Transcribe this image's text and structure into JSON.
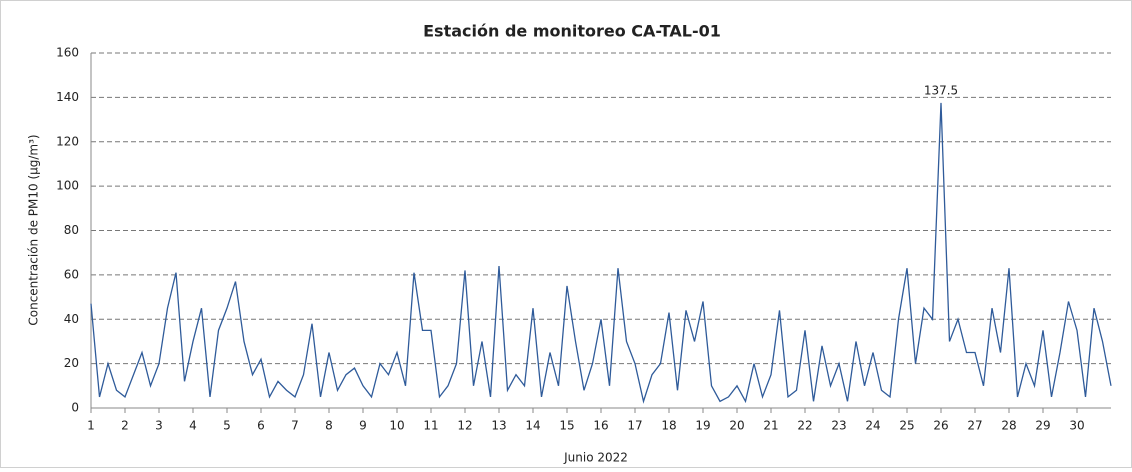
{
  "chart_data": {
    "type": "line",
    "title": "Estación de monitoreo CA-TAL-01",
    "x_label": "Junio 2022",
    "y_label": "Concentración de PM10 (µg/m³)",
    "x": [
      1,
      1.25,
      1.5,
      1.75,
      2,
      2.25,
      2.5,
      2.75,
      3,
      3.25,
      3.5,
      3.75,
      4,
      4.25,
      4.5,
      4.75,
      5,
      5.25,
      5.5,
      5.75,
      6,
      6.25,
      6.5,
      6.75,
      7,
      7.25,
      7.5,
      7.75,
      8,
      8.25,
      8.5,
      8.75,
      9,
      9.25,
      9.5,
      9.75,
      10,
      10.25,
      10.5,
      10.75,
      11,
      11.25,
      11.5,
      11.75,
      12,
      12.25,
      12.5,
      12.75,
      13,
      13.25,
      13.5,
      13.75,
      14,
      14.25,
      14.5,
      14.75,
      15,
      15.25,
      15.5,
      15.75,
      16,
      16.25,
      16.5,
      16.75,
      17,
      17.25,
      17.5,
      17.75,
      18,
      18.25,
      18.5,
      18.75,
      19,
      19.25,
      19.5,
      19.75,
      20,
      20.25,
      20.5,
      20.75,
      21,
      21.25,
      21.5,
      21.75,
      22,
      22.25,
      22.5,
      22.75,
      23,
      23.25,
      23.5,
      23.75,
      24,
      24.25,
      24.5,
      24.75,
      25,
      25.25,
      25.5,
      25.75,
      26,
      26.25,
      26.5,
      26.75,
      27,
      27.25,
      27.5,
      27.75,
      28,
      28.25,
      28.5,
      28.75,
      29,
      29.25,
      29.5,
      29.75,
      30,
      30.25,
      30.5,
      30.75,
      31
    ],
    "series": [
      {
        "name": "PM10",
        "color": "#2f5b9a",
        "values": [
          47,
          5,
          20,
          8,
          5,
          15,
          25,
          10,
          20,
          45,
          61,
          12,
          30,
          45,
          5,
          35,
          45,
          57,
          30,
          15,
          22,
          5,
          12,
          8,
          5,
          15,
          38,
          5,
          25,
          8,
          15,
          18,
          10,
          5,
          20,
          15,
          25,
          10,
          61,
          35,
          35,
          5,
          10,
          20,
          62,
          10,
          30,
          5,
          64,
          8,
          15,
          10,
          45,
          5,
          25,
          10,
          55,
          30,
          8,
          20,
          40,
          10,
          63,
          30,
          20,
          3,
          15,
          20,
          43,
          8,
          44,
          30,
          48,
          10,
          3,
          5,
          10,
          3,
          20,
          5,
          15,
          44,
          5,
          8,
          35,
          3,
          28,
          10,
          20,
          3,
          30,
          10,
          25,
          8,
          5,
          40,
          63,
          20,
          45,
          40,
          137.5,
          30,
          40,
          25,
          25,
          10,
          45,
          25,
          63,
          5,
          20,
          10,
          35,
          5,
          25,
          48,
          35,
          5,
          45,
          30,
          10
        ]
      }
    ],
    "annotations": [
      {
        "text": "137.5",
        "x": 26,
        "y": 137.5
      }
    ],
    "xlim": [
      1,
      31
    ],
    "xticks": [
      1,
      2,
      3,
      4,
      5,
      6,
      7,
      8,
      9,
      10,
      11,
      12,
      13,
      14,
      15,
      16,
      17,
      18,
      19,
      20,
      21,
      22,
      23,
      24,
      25,
      26,
      27,
      28,
      29,
      30
    ],
    "ylim": [
      0,
      160
    ],
    "yticks": [
      0,
      20,
      40,
      60,
      80,
      100,
      120,
      140,
      160
    ],
    "grid": true
  }
}
